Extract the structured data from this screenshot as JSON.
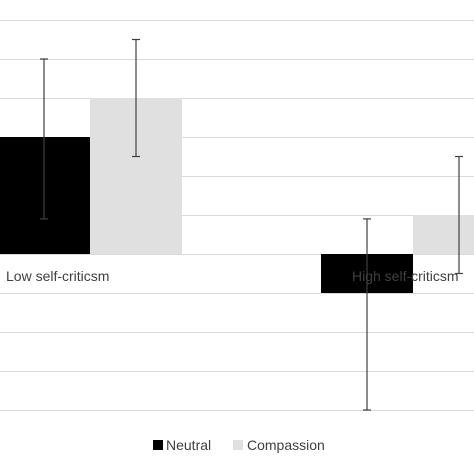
{
  "chart_data": {
    "type": "bar",
    "categories": [
      "Low self-criticsm",
      "High self-criticsm"
    ],
    "series": [
      {
        "name": "Neutral",
        "color": "#000000",
        "values": [
          0.6,
          -0.2
        ],
        "error_low": [
          0.18,
          -0.8
        ],
        "error_high": [
          1.0,
          0.18
        ]
      },
      {
        "name": "Compassion",
        "color": "#e0e0e0",
        "values": [
          0.8,
          0.2
        ],
        "error_low": [
          0.5,
          -0.1
        ],
        "error_high": [
          1.1,
          0.5
        ]
      }
    ],
    "ylim": [
      -0.8,
      1.2
    ],
    "ytick_step": 0.2,
    "grid": true,
    "legend_position": "bottom",
    "title": "",
    "xlabel": "",
    "ylabel": ""
  }
}
